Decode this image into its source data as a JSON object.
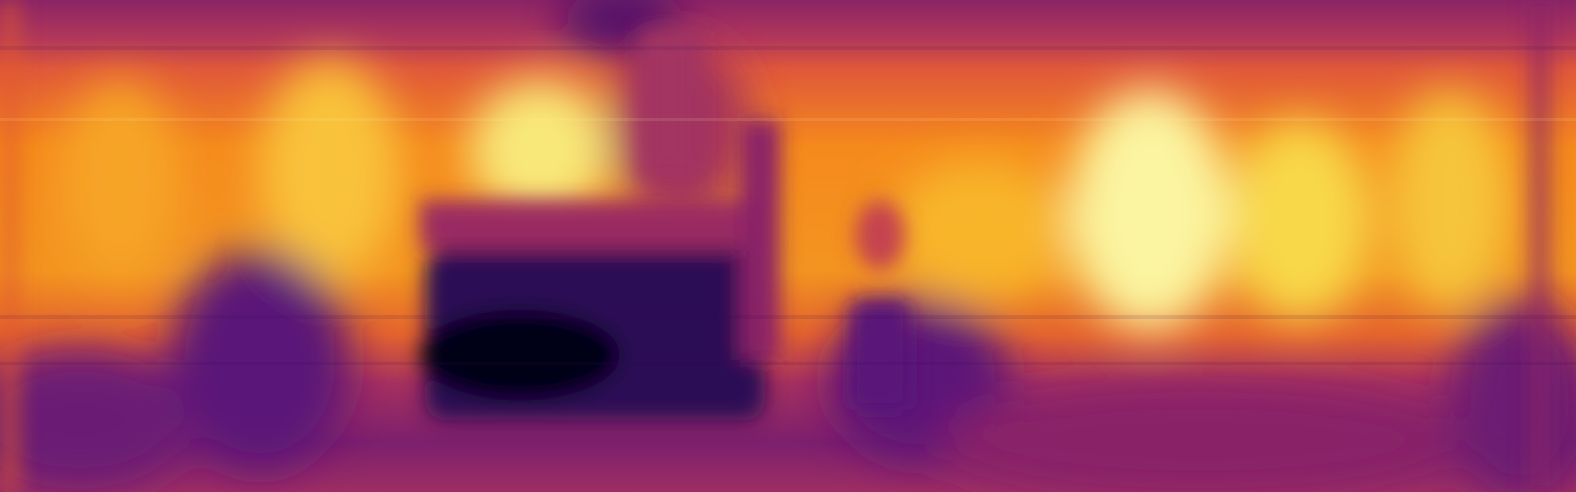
{
  "image": {
    "kind": "depth-map",
    "colormap": "inferno",
    "colormap_stops": [
      "#000004",
      "#1b0c41",
      "#4a0c6b",
      "#781c6d",
      "#a52c60",
      "#cf4446",
      "#ed6925",
      "#fb9b06",
      "#f7d13d",
      "#fcffa4"
    ]
  }
}
